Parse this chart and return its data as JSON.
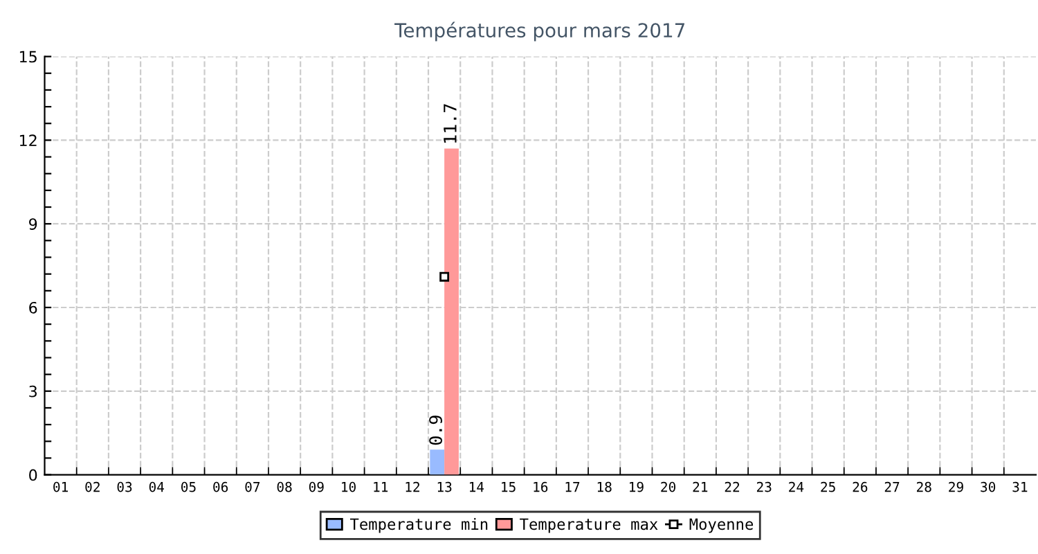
{
  "chart_data": {
    "type": "bar",
    "title": "Températures pour mars 2017",
    "categories": [
      "01",
      "02",
      "03",
      "04",
      "05",
      "06",
      "07",
      "08",
      "09",
      "10",
      "11",
      "12",
      "13",
      "14",
      "15",
      "16",
      "17",
      "18",
      "19",
      "20",
      "21",
      "22",
      "23",
      "24",
      "25",
      "26",
      "27",
      "28",
      "29",
      "30",
      "31"
    ],
    "series": [
      {
        "name": "Temperature min",
        "color": "#99bbff",
        "values": [
          null,
          null,
          null,
          null,
          null,
          null,
          null,
          null,
          null,
          null,
          null,
          null,
          0.9,
          null,
          null,
          null,
          null,
          null,
          null,
          null,
          null,
          null,
          null,
          null,
          null,
          null,
          null,
          null,
          null,
          null,
          null
        ]
      },
      {
        "name": "Temperature max",
        "color": "#ff9999",
        "values": [
          null,
          null,
          null,
          null,
          null,
          null,
          null,
          null,
          null,
          null,
          null,
          null,
          11.7,
          null,
          null,
          null,
          null,
          null,
          null,
          null,
          null,
          null,
          null,
          null,
          null,
          null,
          null,
          null,
          null,
          null,
          null
        ]
      },
      {
        "name": "Moyenne",
        "type": "line",
        "color": "#000000",
        "marker": "square",
        "values": [
          null,
          null,
          null,
          null,
          null,
          null,
          null,
          null,
          null,
          null,
          null,
          null,
          7.1,
          null,
          null,
          null,
          null,
          null,
          null,
          null,
          null,
          null,
          null,
          null,
          null,
          null,
          null,
          null,
          null,
          null,
          null
        ]
      }
    ],
    "value_labels": [
      [
        "0.9"
      ],
      [
        "11.7"
      ]
    ],
    "ylim": [
      0,
      15
    ],
    "yticks": [
      0,
      {
        "value": 0.6,
        "label": null
      },
      {
        "value": 1.2,
        "label": null
      },
      {
        "value": 1.8,
        "label": null
      },
      {
        "value": 2.4,
        "label": null
      },
      3,
      {
        "value": 3.6,
        "label": null
      },
      {
        "value": 4.2,
        "label": null
      },
      {
        "value": 4.8,
        "label": null
      },
      {
        "value": 5.4,
        "label": null
      },
      6,
      {
        "value": 6.6,
        "label": null
      },
      {
        "value": 7.2,
        "label": null
      },
      {
        "value": 7.8,
        "label": null
      },
      {
        "value": 8.4,
        "label": null
      },
      9,
      {
        "value": 9.6,
        "label": null
      },
      {
        "value": 10.2,
        "label": null
      },
      {
        "value": 10.8,
        "label": null
      },
      {
        "value": 11.4,
        "label": null
      },
      12,
      {
        "value": 12.6,
        "label": null
      },
      {
        "value": 13.2,
        "label": null
      },
      {
        "value": 13.8,
        "label": null
      },
      {
        "value": 14.4,
        "label": null
      },
      15
    ],
    "grid": true,
    "legend": "bottom"
  }
}
